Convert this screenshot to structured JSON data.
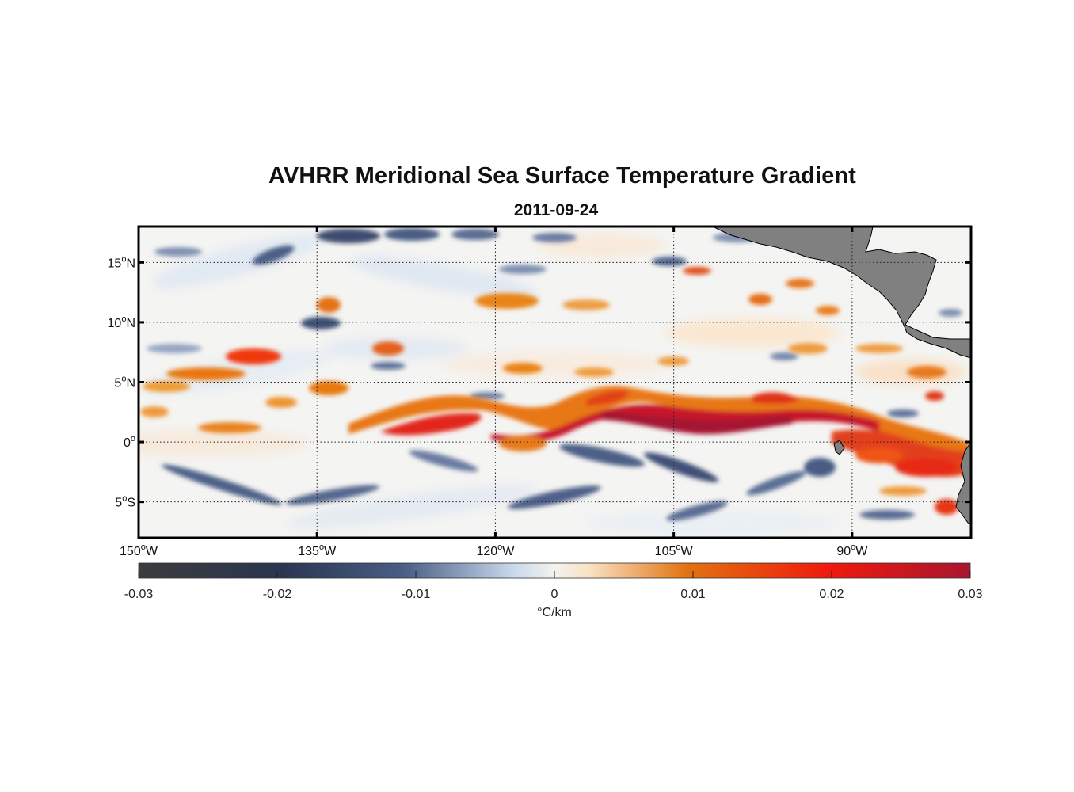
{
  "title": "AVHRR Meridional Sea Surface Temperature Gradient",
  "subtitle": "2011-09-24",
  "map": {
    "lon_range": [
      -150,
      -80
    ],
    "lat_range": [
      -8,
      18
    ],
    "lat_ticks": [
      {
        "value": 15,
        "num": "15",
        "deg": "o",
        "hemi": "N"
      },
      {
        "value": 10,
        "num": "10",
        "deg": "o",
        "hemi": "N"
      },
      {
        "value": 5,
        "num": "5",
        "deg": "o",
        "hemi": "N"
      },
      {
        "value": 0,
        "num": "0",
        "deg": "o",
        "hemi": ""
      },
      {
        "value": -5,
        "num": "5",
        "deg": "o",
        "hemi": "S"
      }
    ],
    "lon_ticks": [
      {
        "value": -150,
        "num": "150",
        "deg": "o",
        "hemi": "W"
      },
      {
        "value": -135,
        "num": "135",
        "deg": "o",
        "hemi": "W"
      },
      {
        "value": -120,
        "num": "120",
        "deg": "o",
        "hemi": "W"
      },
      {
        "value": -105,
        "num": "105",
        "deg": "o",
        "hemi": "W"
      },
      {
        "value": -90,
        "num": "90",
        "deg": "o",
        "hemi": "W"
      }
    ],
    "grid": true,
    "land_color": "#808080"
  },
  "colorbar": {
    "ticks": [
      "-0.03",
      "-0.02",
      "-0.01",
      "0",
      "0.01",
      "0.02",
      "0.03"
    ],
    "unit": "°C/km",
    "range": [
      -0.03,
      0.03
    ],
    "colors": [
      "#3c3c3c",
      "#2a3550",
      "#4a5e86",
      "#c8d8ec",
      "#f3f2ee",
      "#f9e3c6",
      "#e2720f",
      "#f0190e",
      "#a81530"
    ]
  }
}
